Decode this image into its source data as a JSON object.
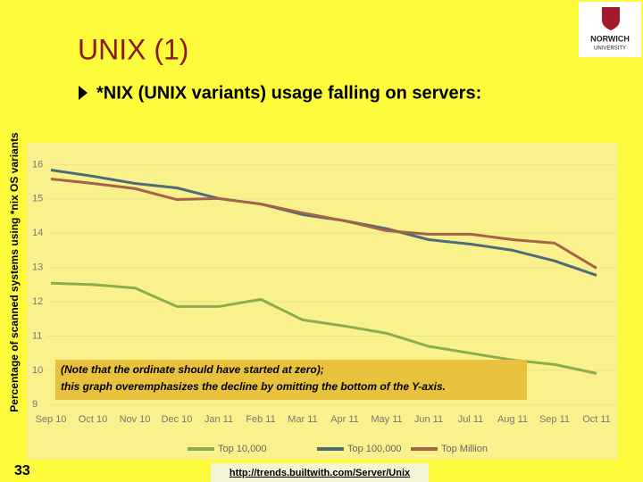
{
  "slide": {
    "title": "UNIX (1)",
    "bullet": "*NIX (UNIX variants) usage falling on servers:",
    "page_number": "33",
    "source_url": "http://trends.builtwith.com/Server/Unix",
    "logo_text": [
      "NORWICH",
      "UNIVERSITY"
    ]
  },
  "chart_data": {
    "type": "line",
    "ylabel": "Percentage of scanned systems using *nix OS variants",
    "annotation": [
      "(Note that the ordinate should have started at zero);",
      "this graph overemphasizes the decline by omitting the bottom of the Y-axis."
    ],
    "categories": [
      "Sep 10",
      "Oct 10",
      "Nov 10",
      "Dec 10",
      "Jan 11",
      "Feb 11",
      "Mar 11",
      "Apr 11",
      "May 11",
      "Jun 11",
      "Jul 11",
      "Aug 11",
      "Sep 11",
      "Oct 11"
    ],
    "series": [
      {
        "name": "Top 10,000",
        "color": "#8aae4c",
        "values": [
          12.54,
          12.5,
          12.4,
          11.86,
          11.86,
          12.07,
          11.47,
          11.29,
          11.08,
          10.7,
          10.5,
          10.3,
          10.17,
          9.91
        ]
      },
      {
        "name": "Top 100,000",
        "color": "#4d6b78",
        "values": [
          15.84,
          15.66,
          15.45,
          15.32,
          15.01,
          14.85,
          14.54,
          14.36,
          14.13,
          13.81,
          13.68,
          13.5,
          13.19,
          12.77
        ]
      },
      {
        "name": "Top Million",
        "color": "#a5634a",
        "values": [
          15.58,
          15.45,
          15.3,
          14.98,
          15.01,
          14.85,
          14.59,
          14.36,
          14.07,
          13.97,
          13.97,
          13.81,
          13.71,
          12.98
        ]
      }
    ],
    "ylim": [
      8.8,
      16.4
    ],
    "yticks": [
      9,
      10,
      11,
      12,
      13,
      14,
      15,
      16
    ],
    "grid": true
  }
}
